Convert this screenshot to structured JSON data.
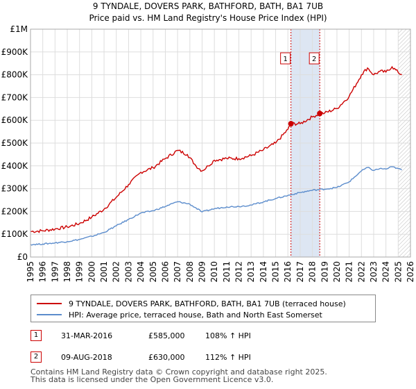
{
  "chart_data": {
    "type": "line",
    "title": "9 TYNDALE, DOVERS PARK, BATHFORD, BATH, BA1 7UB",
    "subtitle": "Price paid vs. HM Land Registry's House Price Index (HPI)",
    "xlim": [
      1995,
      2026
    ],
    "ylim": [
      0,
      1000000
    ],
    "y_ticks": [
      {
        "value": 0,
        "label": "£0"
      },
      {
        "value": 100000,
        "label": "£100K"
      },
      {
        "value": 200000,
        "label": "£200K"
      },
      {
        "value": 300000,
        "label": "£300K"
      },
      {
        "value": 400000,
        "label": "£400K"
      },
      {
        "value": 500000,
        "label": "£500K"
      },
      {
        "value": 600000,
        "label": "£600K"
      },
      {
        "value": 700000,
        "label": "£700K"
      },
      {
        "value": 800000,
        "label": "£800K"
      },
      {
        "value": 900000,
        "label": "£900K"
      },
      {
        "value": 1000000,
        "label": "£1M"
      }
    ],
    "x_ticks": [
      "1995",
      "1996",
      "1997",
      "1998",
      "1999",
      "2000",
      "2001",
      "2002",
      "2003",
      "2004",
      "2005",
      "2006",
      "2007",
      "2008",
      "2009",
      "2010",
      "2011",
      "2012",
      "2013",
      "2014",
      "2015",
      "2016",
      "2017",
      "2018",
      "2019",
      "2020",
      "2021",
      "2022",
      "2023",
      "2024",
      "2025",
      "2026"
    ],
    "shaded_region": [
      2016.25,
      2018.6
    ],
    "hatched_region": [
      2025.0,
      2026
    ],
    "series": [
      {
        "name": "9 TYNDALE, DOVERS PARK, BATHFORD, BATH, BA1 7UB (terraced house)",
        "color": "#cc0000",
        "points": [
          [
            1995,
            112000
          ],
          [
            1996,
            115000
          ],
          [
            1997,
            123000
          ],
          [
            1998,
            132000
          ],
          [
            1999,
            147000
          ],
          [
            2000,
            175000
          ],
          [
            2001,
            210000
          ],
          [
            2002,
            262000
          ],
          [
            2003,
            318000
          ],
          [
            2004,
            372000
          ],
          [
            2005,
            392000
          ],
          [
            2006,
            432000
          ],
          [
            2007,
            468000
          ],
          [
            2007.8,
            450000
          ],
          [
            2008.5,
            400000
          ],
          [
            2009,
            378000
          ],
          [
            2009.5,
            400000
          ],
          [
            2010,
            425000
          ],
          [
            2011,
            433000
          ],
          [
            2012,
            432000
          ],
          [
            2013,
            445000
          ],
          [
            2014,
            470000
          ],
          [
            2015,
            500000
          ],
          [
            2016,
            560000
          ],
          [
            2016.25,
            585000
          ],
          [
            2017,
            585000
          ],
          [
            2018,
            615000
          ],
          [
            2018.6,
            630000
          ],
          [
            2019,
            632000
          ],
          [
            2020,
            652000
          ],
          [
            2021,
            705000
          ],
          [
            2022,
            800000
          ],
          [
            2022.5,
            830000
          ],
          [
            2023,
            800000
          ],
          [
            2023.5,
            815000
          ],
          [
            2024,
            812000
          ],
          [
            2024.5,
            835000
          ],
          [
            2025,
            810000
          ],
          [
            2025.3,
            800000
          ]
        ]
      },
      {
        "name": "HPI: Average price, terraced house, Bath and North East Somerset",
        "color": "#5b8ccc",
        "points": [
          [
            1995,
            55000
          ],
          [
            1996,
            57000
          ],
          [
            1997,
            62000
          ],
          [
            1998,
            68000
          ],
          [
            1999,
            77000
          ],
          [
            2000,
            91000
          ],
          [
            2001,
            108000
          ],
          [
            2002,
            137000
          ],
          [
            2003,
            165000
          ],
          [
            2004,
            193000
          ],
          [
            2005,
            203000
          ],
          [
            2006,
            222000
          ],
          [
            2007,
            243000
          ],
          [
            2008,
            232000
          ],
          [
            2009,
            198000
          ],
          [
            2010,
            212000
          ],
          [
            2011,
            220000
          ],
          [
            2012,
            222000
          ],
          [
            2013,
            228000
          ],
          [
            2014,
            242000
          ],
          [
            2015,
            257000
          ],
          [
            2016,
            270000
          ],
          [
            2017,
            283000
          ],
          [
            2018,
            293000
          ],
          [
            2019,
            298000
          ],
          [
            2020,
            305000
          ],
          [
            2021,
            330000
          ],
          [
            2022,
            378000
          ],
          [
            2022.5,
            393000
          ],
          [
            2023,
            380000
          ],
          [
            2023.5,
            388000
          ],
          [
            2024,
            386000
          ],
          [
            2024.5,
            396000
          ],
          [
            2025,
            388000
          ],
          [
            2025.3,
            382000
          ]
        ]
      }
    ],
    "sales": [
      {
        "label": "1",
        "x": 2016.25,
        "price": 585000,
        "date": "31-MAR-2016",
        "price_text": "£585,000",
        "hpi_text": "108% ↑ HPI"
      },
      {
        "label": "2",
        "x": 2018.6,
        "price": 630000,
        "date": "09-AUG-2018",
        "price_text": "£630,000",
        "hpi_text": "112% ↑ HPI"
      }
    ],
    "colors": {
      "red": "#cc0000",
      "blue": "#5b8ccc",
      "grid": "#dddddd",
      "shade": "#dde6f3",
      "plot_bg": "#ffffff"
    }
  },
  "legend": {
    "red_label": "9 TYNDALE, DOVERS PARK, BATHFORD, BATH, BA1 7UB (terraced house)",
    "blue_label": "HPI: Average price, terraced house, Bath and North East Somerset"
  },
  "footer": {
    "line1": "Contains HM Land Registry data © Crown copyright and database right 2025.",
    "line2": "This data is licensed under the Open Government Licence v3.0."
  }
}
